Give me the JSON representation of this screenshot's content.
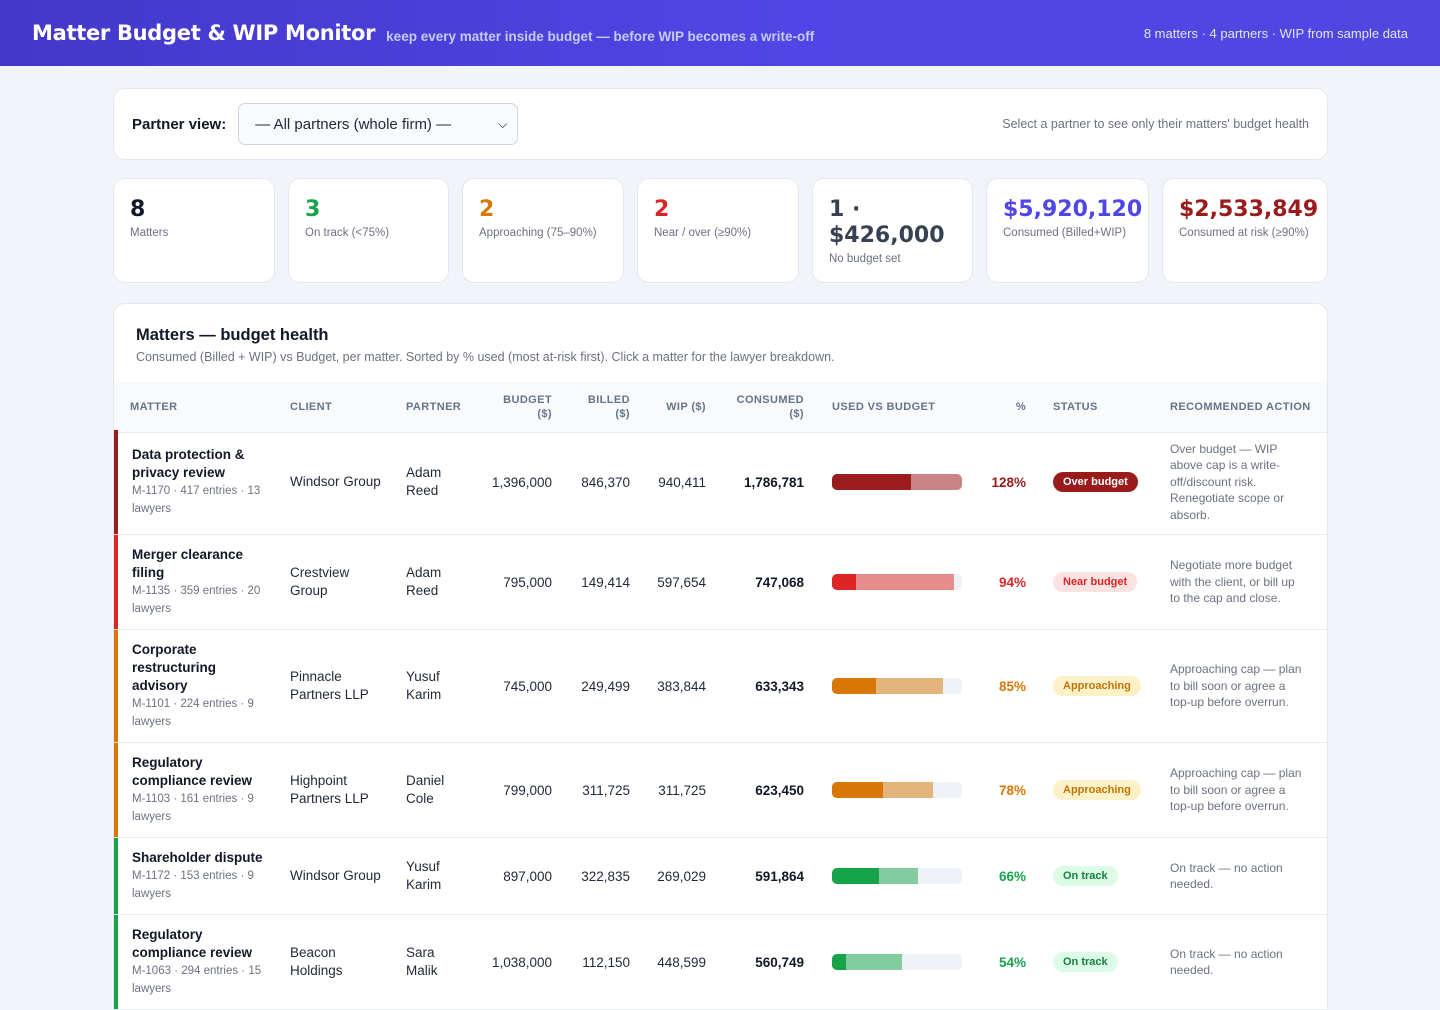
{
  "header": {
    "title": "Matter Budget & WIP Monitor",
    "tagline": "keep every matter inside budget — before WIP becomes a write-off",
    "meta": "8 matters · 4 partners · WIP from sample data"
  },
  "partner_view": {
    "label": "Partner view:",
    "selected": "— All partners (whole firm) —",
    "hint": "Select a partner to see only their matters' budget health"
  },
  "kpis": [
    {
      "value": "8",
      "caption": "Matters",
      "color": "#111827"
    },
    {
      "value": "3",
      "caption": "On track (<75%)",
      "color": "#16a34a"
    },
    {
      "value": "2",
      "caption": "Approaching (75–90%)",
      "color": "#d97706"
    },
    {
      "value": "2",
      "caption": "Near / over (≥90%)",
      "color": "#dc2626"
    },
    {
      "value": "1 · $426,000",
      "caption": "No budget set",
      "color": "#374151"
    },
    {
      "value": "$5,920,120",
      "caption": "Consumed (Billed+WIP)",
      "color": "#4f46e5"
    },
    {
      "value": "$2,533,849",
      "caption": "Consumed at risk (≥90%)",
      "color": "#991b1b"
    }
  ],
  "table": {
    "title": "Matters — budget health",
    "subtitle": "Consumed (Billed + WIP) vs Budget, per matter. Sorted by % used (most at-risk first). Click a matter for the lawyer breakdown.",
    "columns": {
      "matter": "MATTER",
      "client": "CLIENT",
      "partner": "PARTNER",
      "budget": "BUDGET ($)",
      "billed": "BILLED ($)",
      "wip": "WIP ($)",
      "consumed": "CONSUMED ($)",
      "used": "USED VS BUDGET",
      "pct": "%",
      "status": "STATUS",
      "action": "RECOMMENDED ACTION"
    },
    "rows": [
      {
        "name": "Data protection & privacy review",
        "sub": "M-1170 · 417 entries · 13 lawyers",
        "client": "Windsor Group",
        "partner": "Adam Reed",
        "budget": "1,396,000",
        "billed": "846,370",
        "wip": "940,411",
        "consumed": "1,786,781",
        "billed_frac": 0.606,
        "consumed_frac": 1.0,
        "pct": "128%",
        "status": "Over budget",
        "action": "Over budget — WIP above cap is a write-off/discount risk. Renegotiate scope or absorb.",
        "level": "over"
      },
      {
        "name": "Merger clearance filing",
        "sub": "M-1135 · 359 entries · 20 lawyers",
        "client": "Crestview Group",
        "partner": "Adam Reed",
        "budget": "795,000",
        "billed": "149,414",
        "wip": "597,654",
        "consumed": "747,068",
        "billed_frac": 0.188,
        "consumed_frac": 0.94,
        "pct": "94%",
        "status": "Near budget",
        "action": "Negotiate more budget with the client, or bill up to the cap and close.",
        "level": "near"
      },
      {
        "name": "Corporate restructuring advisory",
        "sub": "M-1101 · 224 entries · 9 lawyers",
        "client": "Pinnacle Partners LLP",
        "partner": "Yusuf Karim",
        "budget": "745,000",
        "billed": "249,499",
        "wip": "383,844",
        "consumed": "633,343",
        "billed_frac": 0.335,
        "consumed_frac": 0.85,
        "pct": "85%",
        "status": "Approaching",
        "action": "Approaching cap — plan to bill soon or agree a top-up before overrun.",
        "level": "approach"
      },
      {
        "name": "Regulatory compliance review",
        "sub": "M-1103 · 161 entries · 9 lawyers",
        "client": "Highpoint Partners LLP",
        "partner": "Daniel Cole",
        "budget": "799,000",
        "billed": "311,725",
        "wip": "311,725",
        "consumed": "623,450",
        "billed_frac": 0.39,
        "consumed_frac": 0.78,
        "pct": "78%",
        "status": "Approaching",
        "action": "Approaching cap — plan to bill soon or agree a top-up before overrun.",
        "level": "approach"
      },
      {
        "name": "Shareholder dispute",
        "sub": "M-1172 · 153 entries · 9 lawyers",
        "client": "Windsor Group",
        "partner": "Yusuf Karim",
        "budget": "897,000",
        "billed": "322,835",
        "wip": "269,029",
        "consumed": "591,864",
        "billed_frac": 0.36,
        "consumed_frac": 0.66,
        "pct": "66%",
        "status": "On track",
        "action": "On track — no action needed.",
        "level": "ok"
      },
      {
        "name": "Regulatory compliance review",
        "sub": "M-1063 · 294 entries · 15 lawyers",
        "client": "Beacon Holdings",
        "partner": "Sara Malik",
        "budget": "1,038,000",
        "billed": "112,150",
        "wip": "448,599",
        "consumed": "560,749",
        "billed_frac": 0.108,
        "consumed_frac": 0.54,
        "pct": "54%",
        "status": "On track",
        "action": "On track — no action needed.",
        "level": "ok"
      }
    ]
  },
  "colors": {
    "over": {
      "stripe": "#991b1b",
      "billed": "#9b1c1c",
      "wip": "#c98585",
      "pct": "#991b1b",
      "badge_bg": "#991b1b",
      "badge_fg": "#ffffff"
    },
    "near": {
      "stripe": "#dc2626",
      "billed": "#dc2626",
      "wip": "#e78c8c",
      "pct": "#dc2626",
      "badge_bg": "#fde2e2",
      "badge_fg": "#dc2626"
    },
    "approach": {
      "stripe": "#d97706",
      "billed": "#d97706",
      "wip": "#e3b47c",
      "pct": "#d97706",
      "badge_bg": "#fdf1c7",
      "badge_fg": "#c2740a"
    },
    "ok": {
      "stripe": "#16a34a",
      "billed": "#16a34a",
      "wip": "#83cc9f",
      "pct": "#16a34a",
      "badge_bg": "#dcfce7",
      "badge_fg": "#15803d"
    }
  }
}
